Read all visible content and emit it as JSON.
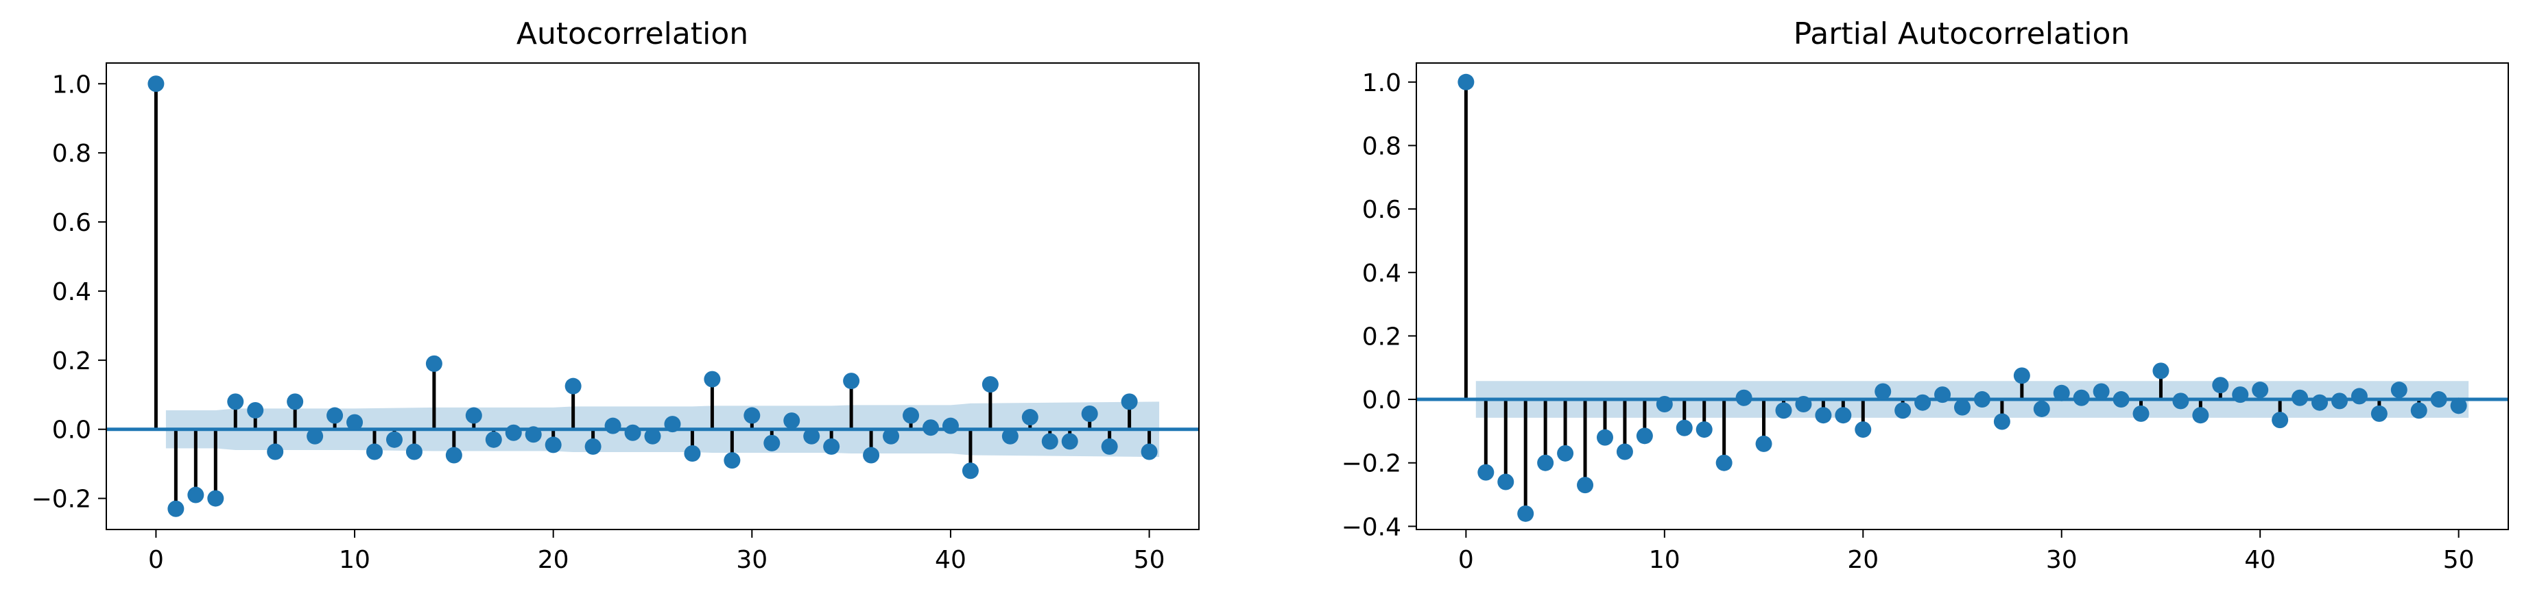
{
  "colors": {
    "marker": "#1f77b4",
    "stem": "#000000",
    "zero_line": "#1f77b4",
    "confidence_band": "#1f77b4"
  },
  "chart_data": [
    {
      "type": "stem",
      "title": "Autocorrelation",
      "xlabel": "",
      "ylabel": "",
      "xlim": [
        -2.5,
        52.5
      ],
      "ylim": [
        -0.29,
        1.06
      ],
      "xticks": [
        0,
        10,
        20,
        30,
        40,
        50
      ],
      "xtick_labels": [
        "0",
        "10",
        "20",
        "30",
        "40",
        "50"
      ],
      "yticks": [
        -0.2,
        0.0,
        0.2,
        0.4,
        0.6,
        0.8,
        1.0
      ],
      "ytick_labels": [
        "−0.2",
        "0.0",
        "0.2",
        "0.4",
        "0.6",
        "0.8",
        "1.0"
      ],
      "grid": false,
      "lags": [
        0,
        1,
        2,
        3,
        4,
        5,
        6,
        7,
        8,
        9,
        10,
        11,
        12,
        13,
        14,
        15,
        16,
        17,
        18,
        19,
        20,
        21,
        22,
        23,
        24,
        25,
        26,
        27,
        28,
        29,
        30,
        31,
        32,
        33,
        34,
        35,
        36,
        37,
        38,
        39,
        40,
        41,
        42,
        43,
        44,
        45,
        46,
        47,
        48,
        49,
        50
      ],
      "values": [
        1.0,
        -0.23,
        -0.19,
        -0.2,
        0.08,
        0.055,
        -0.065,
        0.08,
        -0.02,
        0.04,
        0.02,
        -0.065,
        -0.03,
        -0.065,
        0.19,
        -0.075,
        0.04,
        -0.03,
        -0.01,
        -0.015,
        -0.045,
        0.125,
        -0.05,
        0.01,
        -0.01,
        -0.02,
        0.015,
        -0.07,
        0.145,
        -0.09,
        0.04,
        -0.04,
        0.025,
        -0.02,
        -0.05,
        0.14,
        -0.075,
        -0.02,
        0.04,
        0.005,
        0.01,
        -0.12,
        0.13,
        -0.02,
        0.035,
        -0.035,
        -0.035,
        0.045,
        -0.05,
        0.08,
        -0.065
      ],
      "confidence_band": {
        "lags": [
          0.5,
          3,
          4,
          10,
          14,
          20,
          21,
          27,
          28,
          34,
          35,
          40,
          41,
          50.5
        ],
        "upper": [
          0.055,
          0.055,
          0.06,
          0.06,
          0.063,
          0.063,
          0.066,
          0.066,
          0.068,
          0.068,
          0.07,
          0.07,
          0.075,
          0.08
        ],
        "lower": [
          -0.055,
          -0.055,
          -0.06,
          -0.06,
          -0.063,
          -0.063,
          -0.066,
          -0.066,
          -0.068,
          -0.068,
          -0.07,
          -0.07,
          -0.075,
          -0.08
        ]
      }
    },
    {
      "type": "stem",
      "title": "Partial Autocorrelation",
      "xlabel": "",
      "ylabel": "",
      "xlim": [
        -2.5,
        52.5
      ],
      "ylim": [
        -0.41,
        1.06
      ],
      "xticks": [
        0,
        10,
        20,
        30,
        40,
        50
      ],
      "xtick_labels": [
        "0",
        "10",
        "20",
        "30",
        "40",
        "50"
      ],
      "yticks": [
        -0.4,
        -0.2,
        0.0,
        0.2,
        0.4,
        0.6,
        0.8,
        1.0
      ],
      "ytick_labels": [
        "−0.4",
        "−0.2",
        "0.0",
        "0.2",
        "0.4",
        "0.6",
        "0.8",
        "1.0"
      ],
      "grid": false,
      "lags": [
        0,
        1,
        2,
        3,
        4,
        5,
        6,
        7,
        8,
        9,
        10,
        11,
        12,
        13,
        14,
        15,
        16,
        17,
        18,
        19,
        20,
        21,
        22,
        23,
        24,
        25,
        26,
        27,
        28,
        29,
        30,
        31,
        32,
        33,
        34,
        35,
        36,
        37,
        38,
        39,
        40,
        41,
        42,
        43,
        44,
        45,
        46,
        47,
        48,
        49,
        50
      ],
      "values": [
        1.0,
        -0.23,
        -0.26,
        -0.36,
        -0.2,
        -0.17,
        -0.27,
        -0.12,
        -0.165,
        -0.115,
        -0.015,
        -0.09,
        -0.095,
        -0.2,
        0.005,
        -0.14,
        -0.035,
        -0.015,
        -0.05,
        -0.05,
        -0.095,
        0.025,
        -0.035,
        -0.01,
        0.015,
        -0.025,
        0.0,
        -0.07,
        0.075,
        -0.03,
        0.02,
        0.005,
        0.025,
        0.0,
        -0.045,
        0.09,
        -0.005,
        -0.05,
        0.045,
        0.015,
        0.03,
        -0.065,
        0.005,
        -0.01,
        -0.005,
        0.01,
        -0.045,
        0.03,
        -0.035,
        0.0,
        -0.02
      ],
      "confidence_band": {
        "lags": [
          0.5,
          50.5
        ],
        "upper": [
          0.058,
          0.058
        ],
        "lower": [
          -0.058,
          -0.058
        ]
      }
    }
  ]
}
